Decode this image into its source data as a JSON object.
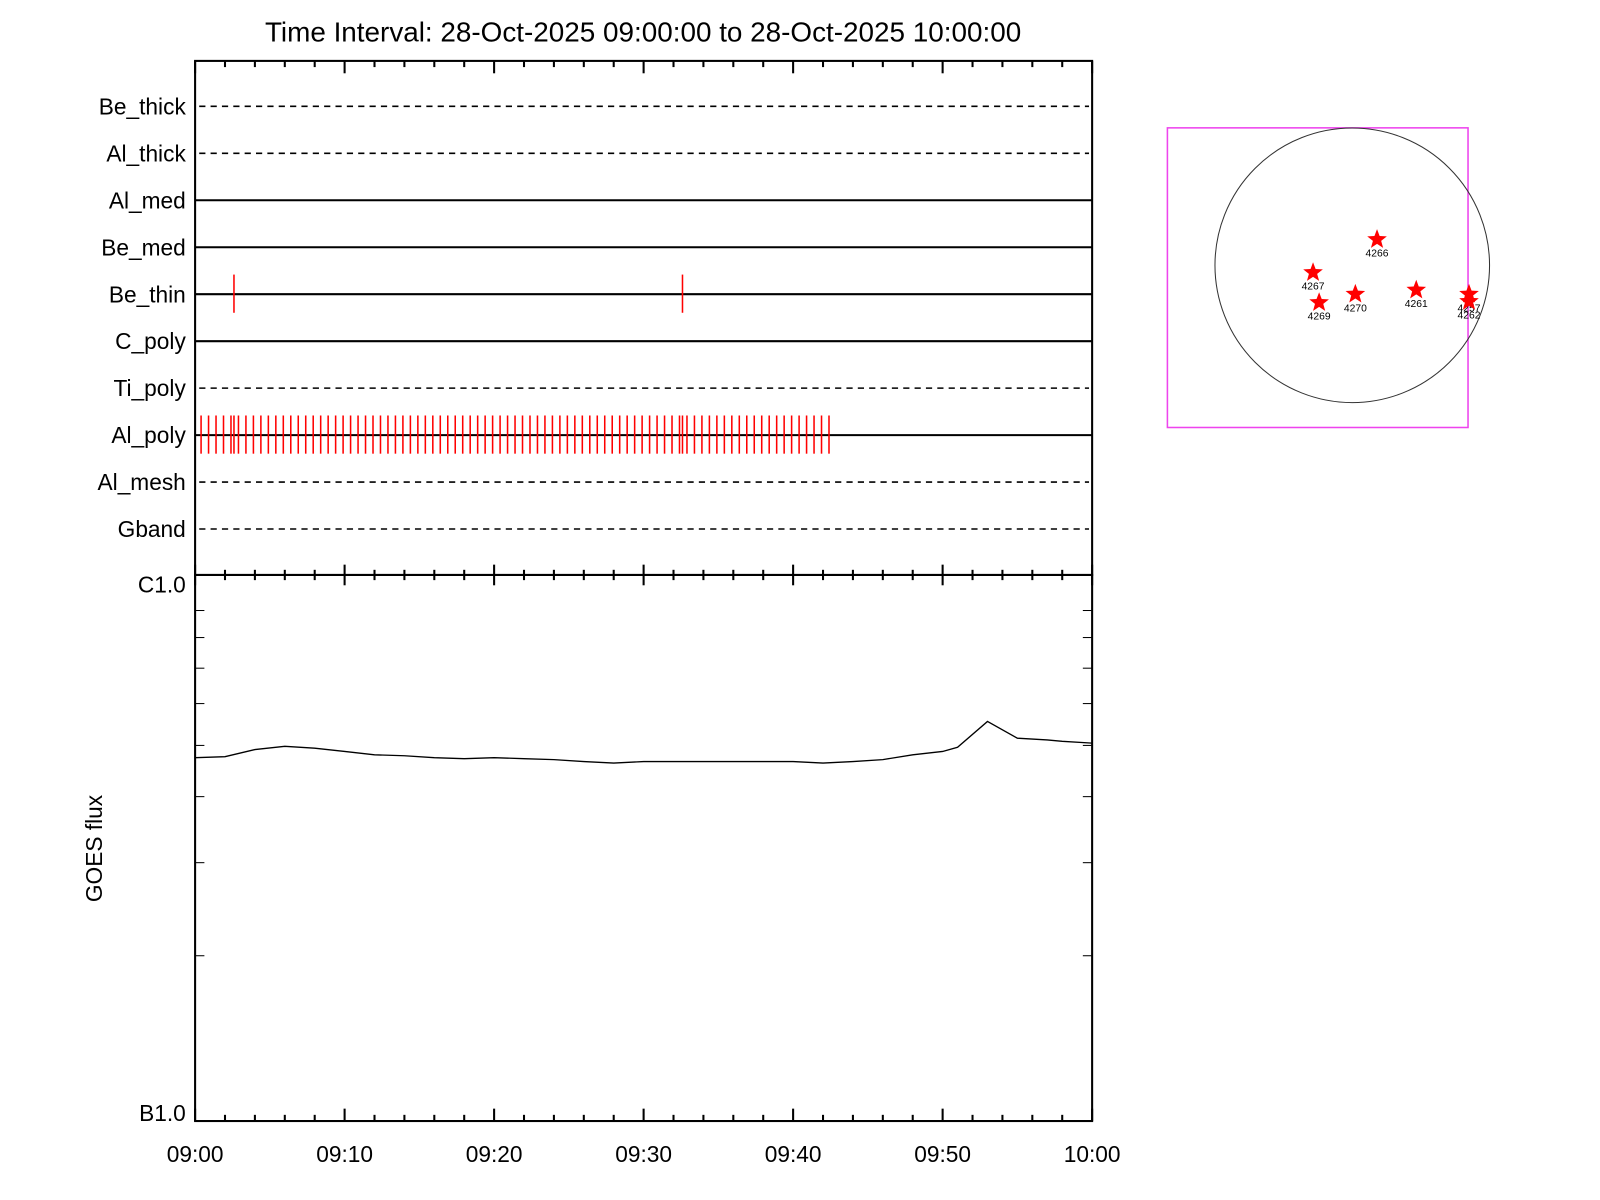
{
  "chart_data": [
    {
      "type": "events",
      "title": "Time Interval: 28-Oct-2025 09:00:00 to 28-Oct-2025 10:00:00",
      "xlim": [
        0,
        60
      ],
      "color": "#ff0000",
      "series": [
        {
          "name": "Be_thick",
          "style": "dashed",
          "events": []
        },
        {
          "name": "Al_thick",
          "style": "dashed",
          "events": []
        },
        {
          "name": "Al_med",
          "style": "solid",
          "events": []
        },
        {
          "name": "Be_med",
          "style": "solid",
          "events": []
        },
        {
          "name": "Be_thin",
          "style": "solid",
          "events": [
            2.6,
            32.6
          ]
        },
        {
          "name": "C_poly",
          "style": "solid",
          "events": []
        },
        {
          "name": "Ti_poly",
          "style": "dashed",
          "events": []
        },
        {
          "name": "Al_poly",
          "style": "solid",
          "events": [
            0.4,
            0.9,
            1.4,
            1.9,
            2.4,
            2.6,
            2.9,
            3.4,
            3.9,
            4.4,
            4.9,
            5.4,
            5.9,
            6.4,
            6.9,
            7.4,
            7.9,
            8.4,
            8.9,
            9.4,
            9.9,
            10.4,
            10.9,
            11.4,
            11.9,
            12.4,
            12.9,
            13.4,
            13.9,
            14.4,
            14.9,
            15.4,
            15.9,
            16.4,
            16.9,
            17.4,
            17.9,
            18.4,
            18.9,
            19.4,
            19.9,
            20.4,
            20.9,
            21.4,
            21.9,
            22.4,
            22.9,
            23.4,
            23.9,
            24.4,
            24.9,
            25.4,
            25.9,
            26.4,
            26.9,
            27.4,
            27.9,
            28.4,
            28.9,
            29.4,
            29.9,
            30.4,
            30.9,
            31.4,
            31.9,
            32.4,
            32.6,
            32.9,
            33.4,
            33.9,
            34.4,
            34.9,
            35.4,
            35.9,
            36.4,
            36.9,
            37.4,
            37.9,
            38.4,
            38.9,
            39.4,
            39.9,
            40.4,
            40.9,
            41.4,
            41.9,
            42.4
          ]
        },
        {
          "name": "Al_mesh",
          "style": "dashed",
          "events": []
        },
        {
          "name": "Gband",
          "style": "dashed",
          "events": []
        }
      ]
    },
    {
      "type": "line",
      "ylabel": "GOES flux",
      "log_scale": true,
      "color": "#000000",
      "xlim": [
        0,
        60
      ],
      "xticks": [
        {
          "value": 0,
          "label": "09:00"
        },
        {
          "value": 10,
          "label": "09:10"
        },
        {
          "value": 20,
          "label": "09:20"
        },
        {
          "value": 30,
          "label": "09:30"
        },
        {
          "value": 40,
          "label": "09:40"
        },
        {
          "value": 50,
          "label": "09:50"
        },
        {
          "value": 60,
          "label": "10:00"
        }
      ],
      "xminor": [
        2,
        4,
        6,
        8,
        12,
        14,
        16,
        18,
        22,
        24,
        26,
        28,
        32,
        34,
        36,
        38,
        42,
        44,
        46,
        48,
        52,
        54,
        56,
        58
      ],
      "ylim": [
        1e-07,
        1e-06
      ],
      "yticks": [
        {
          "value": 1e-06,
          "label": "C1.0"
        },
        {
          "value": 1e-07,
          "label": "B1.0"
        }
      ],
      "yminor": [
        2e-07,
        3e-07,
        4e-07,
        5e-07,
        6e-07,
        7e-07,
        8e-07,
        9e-07
      ],
      "x": [
        0,
        2,
        4,
        6,
        8,
        10,
        12,
        14,
        16,
        18,
        20,
        22,
        24,
        26,
        28,
        30,
        32,
        34,
        36,
        38,
        40,
        42,
        44,
        46,
        48,
        50,
        51,
        53,
        55,
        57,
        58,
        60
      ],
      "values": [
        4.74e-07,
        4.76e-07,
        4.91e-07,
        4.98e-07,
        4.94e-07,
        4.87e-07,
        4.8e-07,
        4.78e-07,
        4.74e-07,
        4.72e-07,
        4.74e-07,
        4.72e-07,
        4.7e-07,
        4.66e-07,
        4.63e-07,
        4.66e-07,
        4.66e-07,
        4.66e-07,
        4.66e-07,
        4.66e-07,
        4.66e-07,
        4.63e-07,
        4.66e-07,
        4.7e-07,
        4.8e-07,
        4.87e-07,
        4.96e-07,
        5.55e-07,
        5.16e-07,
        5.12e-07,
        5.09e-07,
        5.05e-07
      ]
    },
    {
      "type": "map",
      "disk_radius": 970,
      "box_color": "#ee44ee",
      "star_color": "#ff0000",
      "fov": {
        "xlim": [
          -1306,
          818
        ],
        "ylim": [
          -1146,
          971
        ]
      },
      "regions": [
        {
          "label": "4266",
          "x": 175,
          "y": 182
        },
        {
          "label": "4267",
          "x": -277,
          "y": -51
        },
        {
          "label": "4269",
          "x": -234,
          "y": -263
        },
        {
          "label": "4270",
          "x": 22,
          "y": -204
        },
        {
          "label": "4261",
          "x": 452,
          "y": -175
        },
        {
          "label": "4257",
          "x": 825,
          "y": -204
        },
        {
          "label": "4262",
          "x": 825,
          "y": -255
        }
      ]
    }
  ]
}
